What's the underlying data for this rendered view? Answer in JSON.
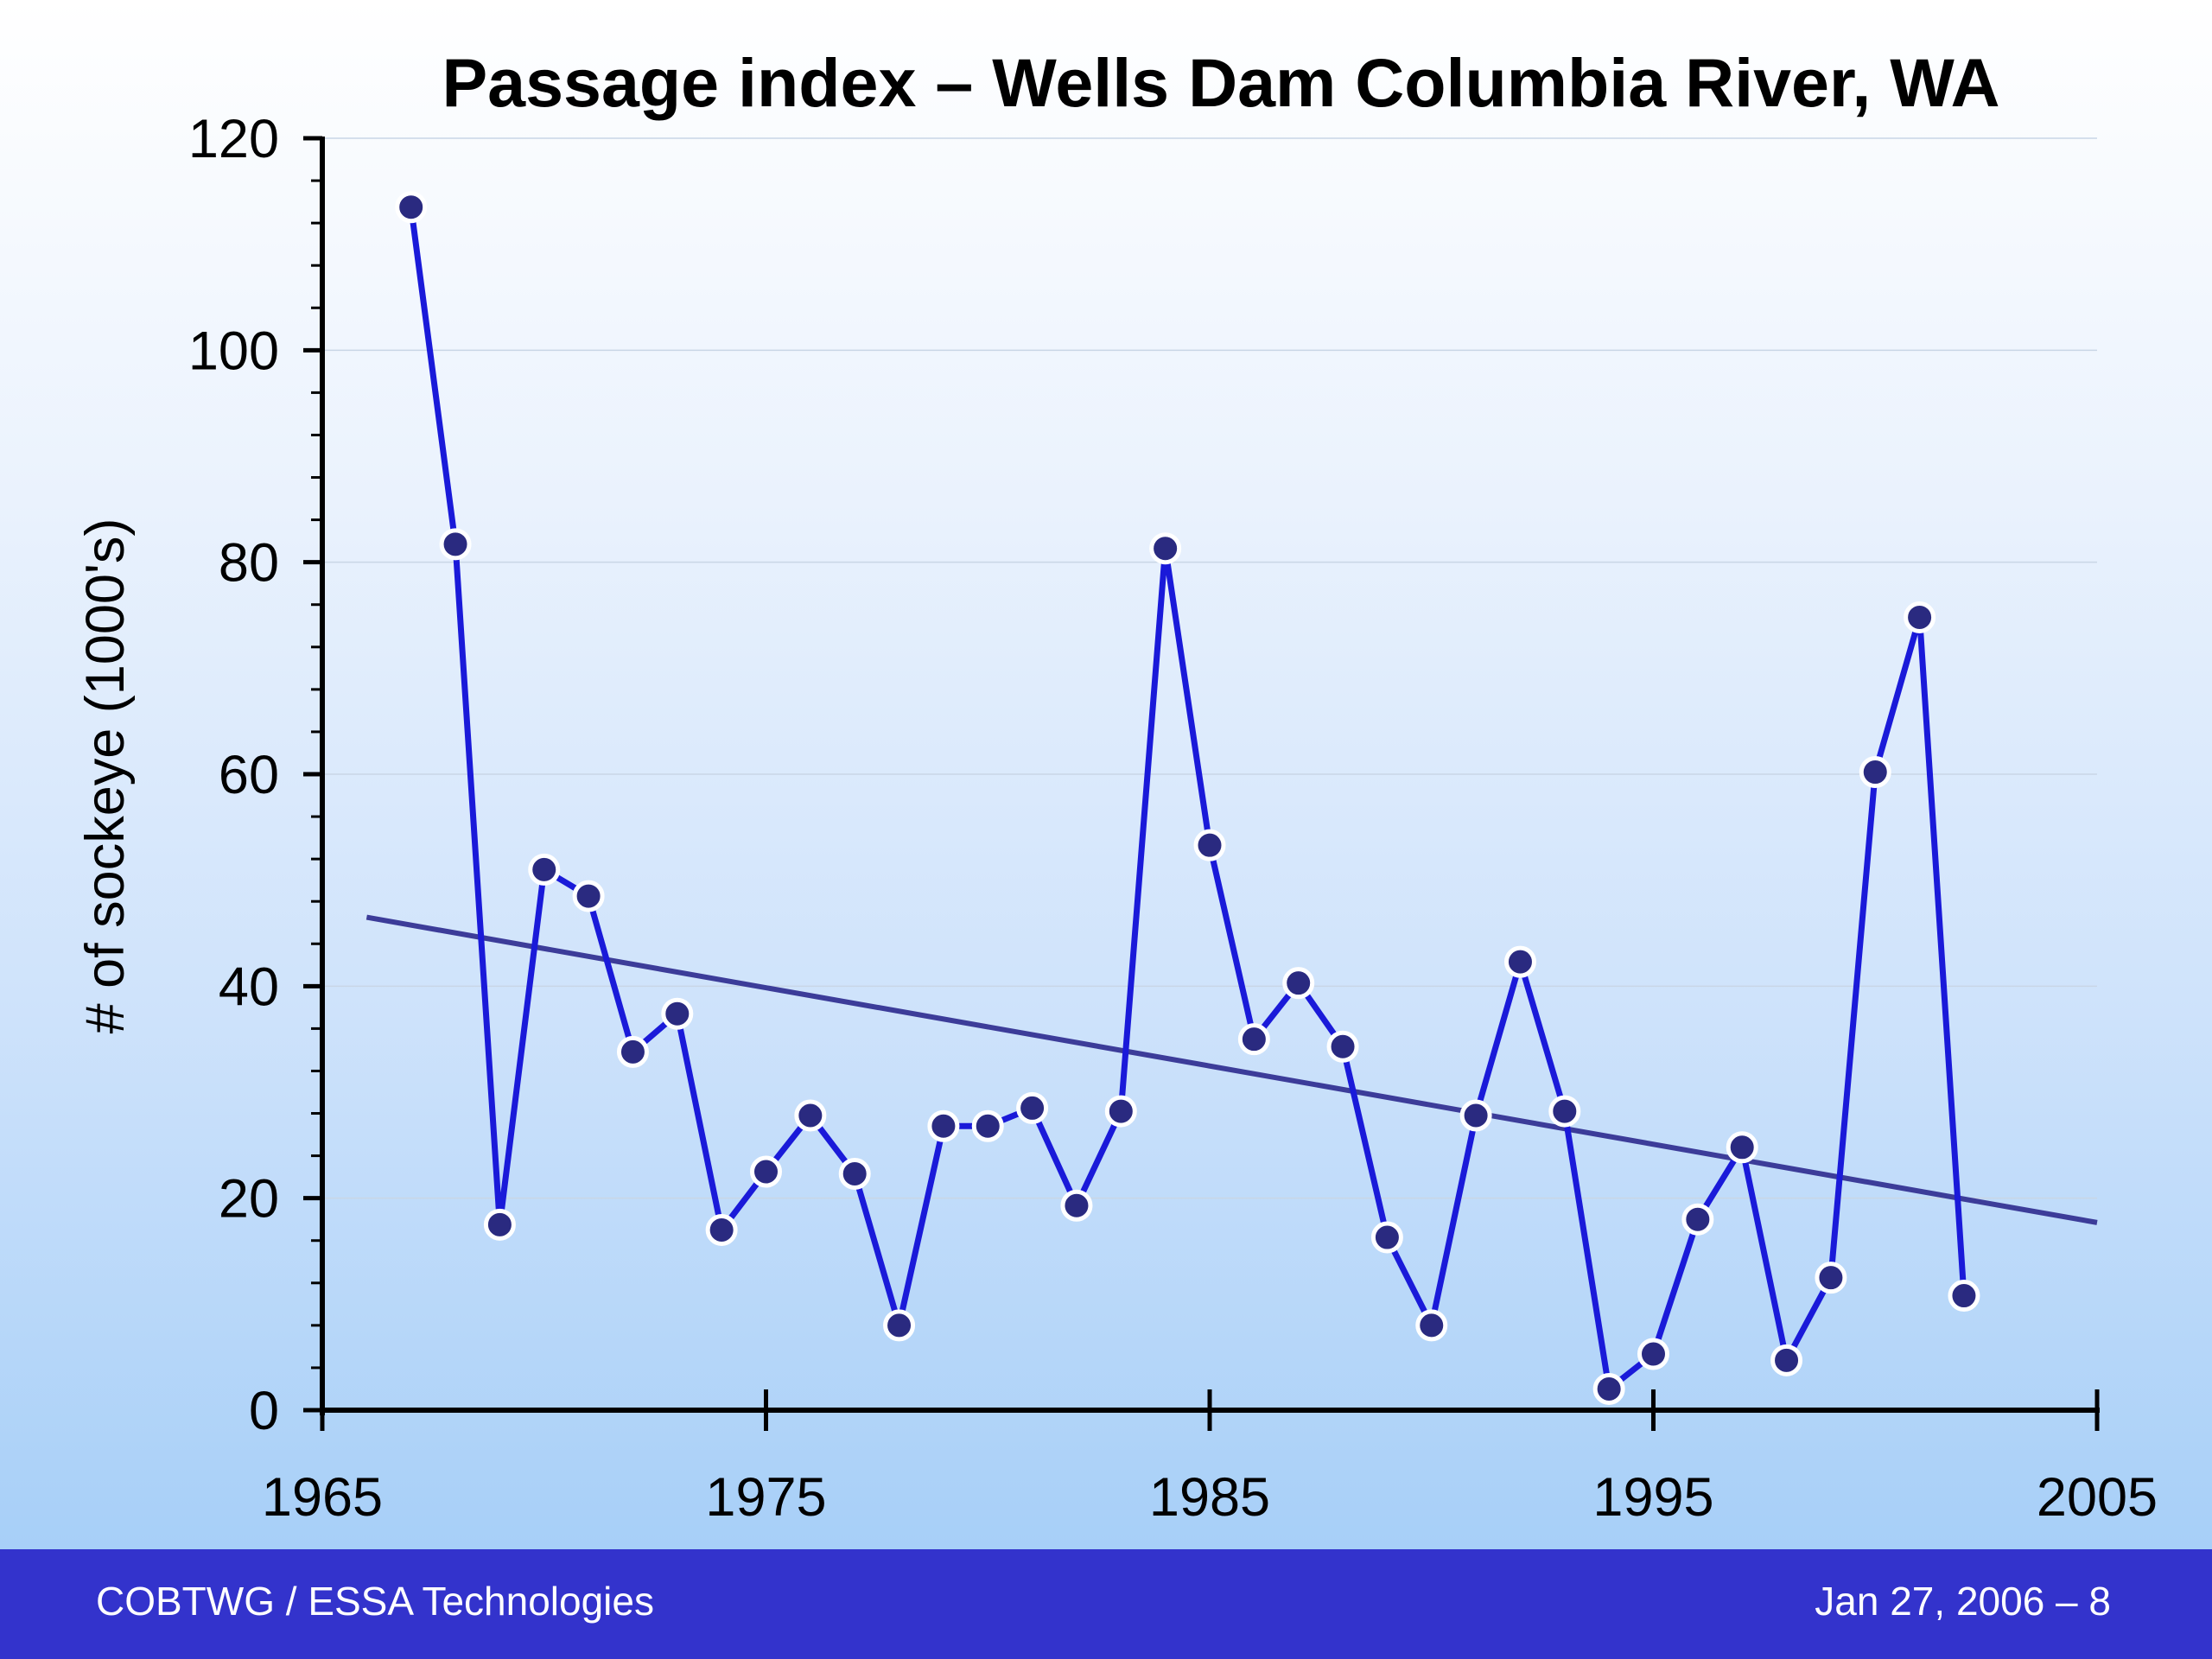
{
  "chart_data": {
    "type": "line",
    "title": "Passage index – Wells Dam Columbia River, WA",
    "xlabel": "",
    "ylabel": "# of sockeye (1000's)",
    "xlim": [
      1965,
      2005
    ],
    "ylim": [
      0,
      120
    ],
    "xticks": [
      1965,
      1975,
      1985,
      1995,
      2005
    ],
    "yticks": [
      0,
      20,
      40,
      60,
      80,
      100,
      120
    ],
    "grid": true,
    "series": [
      {
        "x": [
          1967,
          1968,
          1969,
          1970,
          1971,
          1972,
          1973,
          1974,
          1975,
          1976,
          1977,
          1978,
          1979,
          1980,
          1981,
          1982,
          1983,
          1984,
          1985,
          1986,
          1987,
          1988,
          1989,
          1990,
          1991,
          1992,
          1993,
          1994,
          1995,
          1996,
          1997,
          1998,
          1999,
          2000,
          2001,
          2002
        ],
        "values": [
          113.5,
          81.7,
          17.5,
          51,
          48.5,
          33.8,
          37.4,
          17,
          22.5,
          27.8,
          22.3,
          8,
          26.8,
          26.8,
          28.5,
          19.3,
          28.2,
          81.3,
          53.3,
          35,
          40.3,
          34.3,
          16.3,
          8,
          27.8,
          42.3,
          28.2,
          2,
          5.3,
          18,
          24.8,
          4.7,
          12.5,
          60.2,
          74.8,
          10.8
        ],
        "color": "#1a1ad9"
      }
    ],
    "trendline": {
      "x": [
        1966,
        2005
      ],
      "y": [
        46.5,
        17.7
      ],
      "color": "#3c3c99"
    }
  },
  "footer": {
    "left": "COBTWG / ESSA Technologies",
    "right": "Jan 27, 2006 – 8"
  },
  "colors": {
    "footer_bar": "#3333cc",
    "series": "#1a1ad9",
    "marker_fill": "#2a2a80",
    "trend": "#3c3c99"
  }
}
